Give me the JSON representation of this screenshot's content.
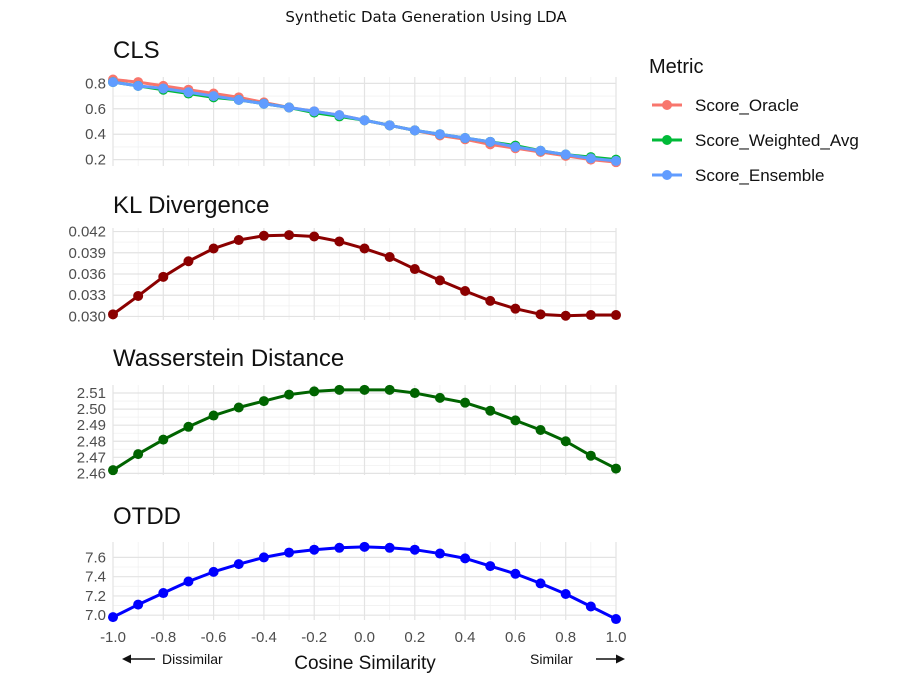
{
  "title": "Synthetic Data Generation Using LDA",
  "chart_data": {
    "type": "line",
    "x": [
      -1.0,
      -0.9,
      -0.8,
      -0.7,
      -0.6,
      -0.5,
      -0.4,
      -0.3,
      -0.2,
      -0.1,
      0.0,
      0.1,
      0.2,
      0.3,
      0.4,
      0.5,
      0.6,
      0.7,
      0.8,
      0.9,
      1.0
    ],
    "xlabel": "Cosine Similarity",
    "xlim": [
      -1.0,
      1.0
    ],
    "x_tick_labels": [
      "-1.0",
      "-0.8",
      "-0.6",
      "-0.4",
      "-0.2",
      "0.0",
      "0.2",
      "0.4",
      "0.6",
      "0.8",
      "1.0"
    ],
    "x_annotations": {
      "left": "Dissimilar",
      "right": "Similar"
    },
    "grid": true,
    "legend": {
      "title": "Metric",
      "position": "right",
      "entries": [
        {
          "name": "Score_Oracle",
          "color": "#f8766d"
        },
        {
          "name": "Score_Weighted_Avg",
          "color": "#00ba38"
        },
        {
          "name": "Score_Ensemble",
          "color": "#619cff"
        }
      ]
    },
    "panels": [
      {
        "title": "CLS",
        "ylim": [
          0.15,
          0.85
        ],
        "y_ticks": [
          0.2,
          0.4,
          0.6,
          0.8
        ],
        "y_tick_labels": [
          "0.2",
          "0.4",
          "0.6",
          "0.8"
        ],
        "series": [
          {
            "name": "Score_Oracle",
            "color": "#f8766d",
            "values": [
              0.83,
              0.81,
              0.78,
              0.75,
              0.72,
              0.69,
              0.65,
              0.61,
              0.58,
              0.55,
              0.51,
              0.47,
              0.43,
              0.39,
              0.36,
              0.32,
              0.29,
              0.26,
              0.23,
              0.2,
              0.18
            ]
          },
          {
            "name": "Score_Weighted_Avg",
            "color": "#00ba38",
            "values": [
              0.81,
              0.78,
              0.75,
              0.72,
              0.69,
              0.67,
              0.64,
              0.61,
              0.57,
              0.54,
              0.51,
              0.47,
              0.43,
              0.4,
              0.37,
              0.34,
              0.31,
              0.27,
              0.24,
              0.22,
              0.2
            ]
          },
          {
            "name": "Score_Ensemble",
            "color": "#619cff",
            "values": [
              0.81,
              0.78,
              0.76,
              0.73,
              0.7,
              0.67,
              0.64,
              0.61,
              0.58,
              0.55,
              0.51,
              0.47,
              0.43,
              0.4,
              0.37,
              0.34,
              0.3,
              0.27,
              0.24,
              0.21,
              0.19
            ]
          }
        ]
      },
      {
        "title": "KL Divergence",
        "ylim": [
          0.0295,
          0.0425
        ],
        "y_ticks": [
          0.03,
          0.033,
          0.036,
          0.039,
          0.042
        ],
        "y_tick_labels": [
          "0.030",
          "0.033",
          "0.036",
          "0.039",
          "0.042"
        ],
        "series": [
          {
            "name": "KL Divergence",
            "color": "#8b0000",
            "values": [
              0.0303,
              0.0329,
              0.0356,
              0.0378,
              0.0396,
              0.0408,
              0.0414,
              0.0415,
              0.0413,
              0.0406,
              0.0396,
              0.0384,
              0.0367,
              0.0351,
              0.0336,
              0.0322,
              0.0311,
              0.0303,
              0.0301,
              0.0302,
              0.0302
            ]
          }
        ]
      },
      {
        "title": "Wasserstein Distance",
        "ylim": [
          2.459,
          2.515
        ],
        "y_ticks": [
          2.46,
          2.47,
          2.48,
          2.49,
          2.5,
          2.51
        ],
        "y_tick_labels": [
          "2.46",
          "2.47",
          "2.48",
          "2.49",
          "2.50",
          "2.51"
        ],
        "series": [
          {
            "name": "Wasserstein Distance",
            "color": "#006400",
            "values": [
              2.462,
              2.472,
              2.481,
              2.489,
              2.496,
              2.501,
              2.505,
              2.509,
              2.511,
              2.512,
              2.512,
              2.512,
              2.51,
              2.507,
              2.504,
              2.499,
              2.493,
              2.487,
              2.48,
              2.471,
              2.463
            ]
          }
        ]
      },
      {
        "title": "OTDD",
        "ylim": [
          6.95,
          7.76
        ],
        "y_ticks": [
          7.0,
          7.2,
          7.4,
          7.6
        ],
        "y_tick_labels": [
          "7.0",
          "7.2",
          "7.4",
          "7.6"
        ],
        "series": [
          {
            "name": "OTDD",
            "color": "#0000ff",
            "values": [
              6.98,
              7.11,
              7.23,
              7.35,
              7.45,
              7.53,
              7.6,
              7.65,
              7.68,
              7.7,
              7.71,
              7.7,
              7.68,
              7.64,
              7.59,
              7.51,
              7.43,
              7.33,
              7.22,
              7.09,
              6.96
            ]
          }
        ]
      }
    ]
  }
}
